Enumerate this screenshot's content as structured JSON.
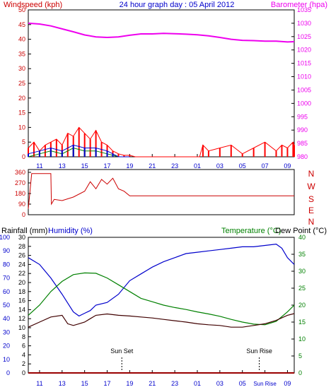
{
  "page": {
    "title": "24 hour graph day : 05 April 2012"
  },
  "colors": {
    "wind_speed": "#ff0000",
    "wind_gust": "#008000",
    "wind_avg": "#0000cc",
    "barometer": "#ee00ee",
    "direction": "#cc0000",
    "humidity": "#0000cc",
    "temperature": "#008000",
    "dewpoint": "#400000",
    "rainfall": "#990000",
    "axis_blue": "#0000cc",
    "axis_green": "#008000",
    "axis_red": "#cc0000",
    "axis_magenta": "#ee00ee"
  },
  "x_axis": {
    "ticks": [
      "11",
      "13",
      "15",
      "17",
      "19",
      "21",
      "23",
      "01",
      "03",
      "05",
      "07",
      "09"
    ],
    "ticks_bottom": [
      "11",
      "13",
      "15",
      "17",
      "19",
      "21",
      "23",
      "01",
      "03",
      "05",
      "Sun Rise",
      "09"
    ],
    "range_hours": [
      0,
      23.6
    ]
  },
  "chart_data": [
    {
      "type": "line",
      "title": "24 hour graph day : 05 April 2012",
      "left_axis_label": "Windspeed (kph)",
      "right_axis_label": "Barometer (hpa)",
      "y_left_range": [
        0,
        50
      ],
      "y_left_ticks": [
        "0",
        "5",
        "10",
        "15",
        "20",
        "25",
        "30",
        "35",
        "40",
        "45",
        "50"
      ],
      "y_right_range": [
        980,
        1035
      ],
      "y_right_ticks": [
        "980",
        "985",
        "990",
        "995",
        "1000",
        "1005",
        "1010",
        "1015",
        "1020",
        "1025",
        "1030",
        "1035"
      ],
      "series": [
        {
          "key": "barometer",
          "axis": "right",
          "x": [
            0,
            1,
            2,
            3,
            4,
            5,
            6,
            7,
            8,
            9,
            10,
            11,
            12,
            13,
            14,
            15,
            16,
            17,
            18,
            19,
            20,
            21,
            22,
            23,
            23.6
          ],
          "values": [
            1030.0,
            1029.7,
            1029.0,
            1027.9,
            1026.8,
            1025.6,
            1024.9,
            1024.7,
            1024.9,
            1025.5,
            1026.0,
            1026.0,
            1026.2,
            1026.1,
            1025.9,
            1025.7,
            1025.3,
            1024.7,
            1024.0,
            1023.6,
            1023.5,
            1023.3,
            1023.3,
            1023.0,
            1023.1
          ]
        },
        {
          "key": "wind_speed",
          "axis": "left",
          "x": [
            0,
            0.5,
            1,
            1.5,
            2,
            2.5,
            3,
            3.5,
            4,
            4.5,
            5,
            5.5,
            6,
            6.5,
            7,
            7.5,
            8,
            8.5,
            9,
            9.5,
            10,
            12,
            14,
            15.2,
            15.5,
            16,
            17,
            18,
            19,
            20,
            21,
            22,
            22.5,
            23,
            23.5,
            23.6
          ],
          "values": [
            3,
            5,
            2,
            4,
            5,
            6,
            4,
            8,
            7,
            10,
            8,
            6,
            9,
            5,
            4,
            2,
            1,
            0.5,
            0.5,
            0,
            0,
            0,
            0,
            0,
            4,
            2,
            3,
            4,
            1,
            3,
            5,
            2,
            4,
            3,
            5,
            4
          ]
        },
        {
          "key": "wind_gust",
          "axis": "left",
          "x": [
            0,
            1,
            2,
            3,
            4,
            5,
            6,
            7,
            7.5,
            8,
            9
          ],
          "values": [
            0,
            1,
            2,
            1,
            3,
            2,
            2,
            1,
            0.5,
            0,
            0
          ]
        },
        {
          "key": "wind_avg",
          "axis": "left",
          "x": [
            0,
            1,
            2,
            3,
            4,
            5,
            6,
            7,
            7.5,
            8,
            9
          ],
          "values": [
            1,
            2,
            3,
            2,
            4,
            3,
            3,
            2,
            1,
            0,
            0
          ]
        }
      ]
    },
    {
      "type": "line",
      "title": "",
      "y_ticks": [
        "0",
        "90",
        "180",
        "270",
        "360"
      ],
      "y_range": [
        0,
        360
      ],
      "right_labels": [
        "N",
        "W",
        "S",
        "E",
        "N"
      ],
      "series": [
        {
          "key": "direction",
          "x": [
            0,
            0.3,
            0.5,
            2.0,
            2.05,
            2.3,
            3,
            4,
            5,
            5.5,
            6,
            6.5,
            7,
            7.5,
            8,
            8.5,
            9,
            10,
            12,
            15,
            18,
            21,
            23.6
          ],
          "values": [
            50,
            350,
            350,
            350,
            90,
            130,
            120,
            150,
            200,
            280,
            220,
            300,
            260,
            310,
            220,
            200,
            160,
            160,
            160,
            160,
            160,
            160,
            160
          ]
        }
      ]
    },
    {
      "type": "line",
      "title": "",
      "left_labels": [
        "Rainfall (mm)",
        "Humidity (%)"
      ],
      "right_labels": [
        "Temperature (°C)",
        "Dew Point (°C)"
      ],
      "rainfall_range": [
        0,
        30
      ],
      "rainfall_ticks": [
        "0",
        "2",
        "4",
        "6",
        "8",
        "10",
        "12",
        "14",
        "16",
        "18",
        "20",
        "22",
        "24",
        "26",
        "28",
        "30"
      ],
      "humidity_range": [
        0,
        100
      ],
      "humidity_ticks": [
        "0",
        "10",
        "20",
        "30",
        "40",
        "50",
        "60",
        "70",
        "80",
        "90",
        "100"
      ],
      "temp_range": [
        0,
        40
      ],
      "temp_ticks": [
        "0",
        "5",
        "10",
        "15",
        "20",
        "25",
        "30",
        "35",
        "40"
      ],
      "annotations": [
        {
          "text": "Sun Set",
          "x_hour": 8.3
        },
        {
          "text": "Sun Rise",
          "x_hour": 20.5
        }
      ],
      "series": [
        {
          "key": "humidity",
          "axis": "humidity",
          "x": [
            0,
            1,
            2,
            3,
            4,
            4.5,
            5,
            5.5,
            6,
            7,
            8,
            9,
            10,
            11,
            12,
            13,
            14,
            15,
            16,
            17,
            18,
            19,
            20,
            21,
            22,
            22.5,
            23,
            23.6
          ],
          "values": [
            85,
            80,
            70,
            58,
            45,
            42,
            44,
            46,
            50,
            52,
            58,
            68,
            73,
            78,
            82,
            85,
            88,
            89,
            90,
            91,
            92,
            93,
            93,
            94,
            95,
            92,
            85,
            80
          ]
        },
        {
          "key": "temperature",
          "axis": "temp",
          "x": [
            0,
            1,
            2,
            3,
            4,
            5,
            6,
            7,
            8,
            9,
            10,
            11,
            12,
            13,
            14,
            15,
            16,
            17,
            18,
            19,
            20,
            21,
            22,
            23,
            23.6
          ],
          "values": [
            17,
            20,
            24,
            27,
            29,
            29.5,
            29.4,
            28,
            26,
            24,
            22,
            21,
            20,
            19.3,
            18.7,
            18,
            17.4,
            16.7,
            15.8,
            15,
            14.4,
            14.2,
            15.2,
            18,
            20
          ]
        },
        {
          "key": "dewpoint",
          "axis": "temp",
          "x": [
            0,
            1,
            2,
            3,
            3.5,
            4,
            4.5,
            5,
            5.5,
            6,
            7,
            8,
            9,
            10,
            11,
            12,
            13,
            14,
            15,
            16,
            17,
            18,
            19,
            20,
            21,
            22,
            23,
            23.6
          ],
          "values": [
            13.5,
            15,
            16.5,
            17,
            14.5,
            14,
            14.5,
            15,
            16,
            17,
            17.4,
            17,
            16.8,
            16.5,
            16.2,
            15.8,
            15.4,
            15,
            14.5,
            14.2,
            14,
            13.5,
            13.5,
            14,
            14.5,
            15.5,
            17,
            17.5
          ]
        },
        {
          "key": "rainfall",
          "axis": "rainfall",
          "x": [
            0,
            23.6
          ],
          "values": [
            0,
            0
          ]
        }
      ]
    }
  ]
}
